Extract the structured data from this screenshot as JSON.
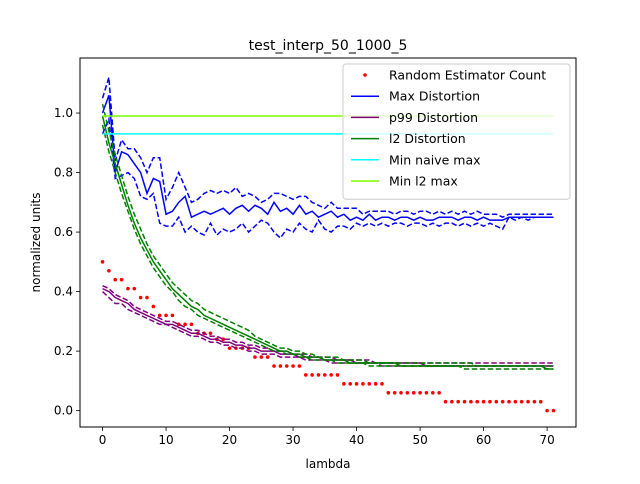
{
  "chart_data": {
    "type": "line",
    "title": "test_interp_50_1000_5",
    "xlabel": "lambda",
    "ylabel": "normalized units",
    "xlim": [
      -3.55,
      74.55
    ],
    "ylim": [
      -0.055,
      1.185
    ],
    "xticks": [
      0,
      10,
      20,
      30,
      40,
      50,
      60,
      70
    ],
    "yticks": [
      0.0,
      0.2,
      0.4,
      0.6,
      0.8,
      1.0
    ],
    "xtick_labels": [
      "0",
      "10",
      "20",
      "30",
      "40",
      "50",
      "60",
      "70"
    ],
    "ytick_labels": [
      "0.0",
      "0.2",
      "0.4",
      "0.6",
      "0.8",
      "1.0"
    ],
    "grid": false,
    "legend": {
      "position": "top-right",
      "entries": [
        {
          "label": "Random Estimator Count",
          "color": "#ff0000",
          "style": "dot"
        },
        {
          "label": "Max Distortion",
          "color": "#0000ff",
          "style": "line"
        },
        {
          "label": "p99 Distortion",
          "color": "#800080",
          "style": "line"
        },
        {
          "label": "l2 Distortion",
          "color": "#008000",
          "style": "line"
        },
        {
          "label": "Min naive max",
          "color": "#00ffff",
          "style": "line"
        },
        {
          "label": "Min l2 max",
          "color": "#7fff00",
          "style": "line"
        }
      ]
    },
    "series": [
      {
        "name": "Random Estimator Count",
        "kind": "scatter",
        "color": "#ff0000",
        "x": [
          0,
          1,
          2,
          3,
          4,
          5,
          6,
          7,
          8,
          9,
          10,
          11,
          12,
          13,
          14,
          15,
          16,
          17,
          18,
          19,
          20,
          21,
          22,
          23,
          24,
          25,
          26,
          27,
          28,
          29,
          30,
          31,
          32,
          33,
          34,
          35,
          36,
          37,
          38,
          39,
          40,
          41,
          42,
          43,
          44,
          45,
          46,
          47,
          48,
          49,
          50,
          51,
          52,
          53,
          54,
          55,
          56,
          57,
          58,
          59,
          60,
          61,
          62,
          63,
          64,
          65,
          66,
          67,
          68,
          69,
          70,
          71
        ],
        "y": [
          0.5,
          0.47,
          0.44,
          0.44,
          0.41,
          0.41,
          0.38,
          0.38,
          0.35,
          0.32,
          0.32,
          0.32,
          0.29,
          0.29,
          0.29,
          0.26,
          0.26,
          0.26,
          0.24,
          0.24,
          0.21,
          0.21,
          0.21,
          0.21,
          0.18,
          0.18,
          0.18,
          0.15,
          0.15,
          0.15,
          0.15,
          0.15,
          0.12,
          0.12,
          0.12,
          0.12,
          0.12,
          0.12,
          0.09,
          0.09,
          0.09,
          0.09,
          0.09,
          0.09,
          0.09,
          0.06,
          0.06,
          0.06,
          0.06,
          0.06,
          0.06,
          0.06,
          0.06,
          0.06,
          0.03,
          0.03,
          0.03,
          0.03,
          0.03,
          0.03,
          0.03,
          0.03,
          0.03,
          0.03,
          0.03,
          0.03,
          0.03,
          0.03,
          0.03,
          0.03,
          0.0,
          0.0
        ]
      },
      {
        "name": "Max Distortion",
        "color": "#0000ff",
        "y": [
          1.0,
          1.06,
          0.8,
          0.87,
          0.86,
          0.83,
          0.8,
          0.73,
          0.78,
          0.77,
          0.66,
          0.67,
          0.7,
          0.72,
          0.65,
          0.66,
          0.67,
          0.66,
          0.67,
          0.68,
          0.66,
          0.68,
          0.69,
          0.67,
          0.69,
          0.68,
          0.66,
          0.7,
          0.67,
          0.68,
          0.66,
          0.69,
          0.66,
          0.67,
          0.65,
          0.66,
          0.67,
          0.65,
          0.66,
          0.64,
          0.65,
          0.64,
          0.66,
          0.64,
          0.65,
          0.65,
          0.64,
          0.65,
          0.65,
          0.64,
          0.65,
          0.64,
          0.64,
          0.65,
          0.65,
          0.65,
          0.64,
          0.65,
          0.65,
          0.64,
          0.65,
          0.64,
          0.64,
          0.64,
          0.65,
          0.65,
          0.65,
          0.65,
          0.65,
          0.65,
          0.65,
          0.65
        ],
        "lower": [
          0.93,
          0.98,
          0.78,
          0.79,
          0.8,
          0.78,
          0.72,
          0.71,
          0.73,
          0.63,
          0.62,
          0.62,
          0.65,
          0.6,
          0.62,
          0.6,
          0.59,
          0.63,
          0.59,
          0.61,
          0.6,
          0.61,
          0.63,
          0.6,
          0.62,
          0.64,
          0.63,
          0.6,
          0.58,
          0.61,
          0.6,
          0.63,
          0.61,
          0.6,
          0.64,
          0.61,
          0.6,
          0.62,
          0.62,
          0.61,
          0.63,
          0.62,
          0.63,
          0.62,
          0.63,
          0.62,
          0.63,
          0.63,
          0.62,
          0.63,
          0.63,
          0.62,
          0.63,
          0.62,
          0.63,
          0.63,
          0.62,
          0.63,
          0.62,
          0.63,
          0.62,
          0.63,
          0.62,
          0.61,
          0.65,
          0.64,
          0.65,
          0.64,
          0.65,
          0.65,
          0.65,
          0.65
        ],
        "upper": [
          1.05,
          1.12,
          0.84,
          0.91,
          0.88,
          0.88,
          0.85,
          0.8,
          0.85,
          0.85,
          0.71,
          0.75,
          0.8,
          0.75,
          0.7,
          0.71,
          0.73,
          0.74,
          0.73,
          0.74,
          0.73,
          0.75,
          0.72,
          0.73,
          0.72,
          0.7,
          0.71,
          0.73,
          0.73,
          0.72,
          0.71,
          0.72,
          0.72,
          0.7,
          0.69,
          0.68,
          0.7,
          0.68,
          0.68,
          0.68,
          0.68,
          0.66,
          0.67,
          0.67,
          0.67,
          0.67,
          0.66,
          0.67,
          0.67,
          0.66,
          0.67,
          0.67,
          0.66,
          0.67,
          0.66,
          0.67,
          0.66,
          0.67,
          0.66,
          0.67,
          0.66,
          0.66,
          0.66,
          0.65,
          0.66,
          0.66,
          0.66,
          0.66,
          0.66,
          0.66,
          0.66,
          0.66
        ]
      },
      {
        "name": "p99 Distortion",
        "color": "#800080",
        "y": [
          0.41,
          0.4,
          0.38,
          0.37,
          0.36,
          0.34,
          0.33,
          0.32,
          0.31,
          0.3,
          0.29,
          0.29,
          0.28,
          0.27,
          0.26,
          0.26,
          0.25,
          0.24,
          0.24,
          0.23,
          0.23,
          0.22,
          0.22,
          0.21,
          0.21,
          0.2,
          0.2,
          0.2,
          0.19,
          0.19,
          0.19,
          0.18,
          0.18,
          0.18,
          0.18,
          0.17,
          0.17,
          0.17,
          0.17,
          0.17,
          0.16,
          0.16,
          0.16,
          0.16,
          0.16,
          0.16,
          0.16,
          0.16,
          0.16,
          0.16,
          0.16,
          0.15,
          0.15,
          0.15,
          0.15,
          0.15,
          0.15,
          0.15,
          0.15,
          0.15,
          0.15,
          0.15,
          0.15,
          0.15,
          0.15,
          0.15,
          0.15,
          0.15,
          0.15,
          0.15,
          0.15,
          0.15
        ],
        "lower": [
          0.4,
          0.38,
          0.36,
          0.36,
          0.34,
          0.33,
          0.32,
          0.31,
          0.3,
          0.29,
          0.29,
          0.28,
          0.27,
          0.26,
          0.25,
          0.25,
          0.24,
          0.23,
          0.23,
          0.22,
          0.22,
          0.21,
          0.21,
          0.2,
          0.2,
          0.19,
          0.19,
          0.19,
          0.18,
          0.18,
          0.18,
          0.18,
          0.17,
          0.17,
          0.17,
          0.17,
          0.16,
          0.16,
          0.16,
          0.16,
          0.16,
          0.16,
          0.16,
          0.16,
          0.15,
          0.15,
          0.15,
          0.15,
          0.15,
          0.15,
          0.15,
          0.15,
          0.15,
          0.15,
          0.15,
          0.15,
          0.15,
          0.15,
          0.15,
          0.15,
          0.15,
          0.15,
          0.15,
          0.15,
          0.15,
          0.15,
          0.15,
          0.15,
          0.15,
          0.15,
          0.15,
          0.15
        ],
        "upper": [
          0.42,
          0.41,
          0.39,
          0.38,
          0.37,
          0.35,
          0.34,
          0.33,
          0.32,
          0.31,
          0.3,
          0.3,
          0.29,
          0.28,
          0.27,
          0.27,
          0.26,
          0.25,
          0.25,
          0.24,
          0.24,
          0.23,
          0.23,
          0.22,
          0.22,
          0.21,
          0.21,
          0.2,
          0.2,
          0.2,
          0.19,
          0.19,
          0.19,
          0.18,
          0.18,
          0.18,
          0.18,
          0.17,
          0.17,
          0.17,
          0.17,
          0.17,
          0.17,
          0.16,
          0.16,
          0.16,
          0.16,
          0.16,
          0.16,
          0.16,
          0.16,
          0.16,
          0.16,
          0.16,
          0.16,
          0.16,
          0.16,
          0.16,
          0.16,
          0.16,
          0.16,
          0.16,
          0.16,
          0.16,
          0.16,
          0.16,
          0.16,
          0.16,
          0.16,
          0.16,
          0.16,
          0.16
        ]
      },
      {
        "name": "l2 Distortion",
        "color": "#008000",
        "y": [
          0.99,
          0.9,
          0.83,
          0.76,
          0.69,
          0.63,
          0.58,
          0.54,
          0.5,
          0.47,
          0.44,
          0.41,
          0.39,
          0.37,
          0.35,
          0.34,
          0.32,
          0.31,
          0.3,
          0.29,
          0.28,
          0.27,
          0.26,
          0.25,
          0.24,
          0.23,
          0.22,
          0.21,
          0.2,
          0.2,
          0.19,
          0.19,
          0.18,
          0.18,
          0.18,
          0.17,
          0.17,
          0.17,
          0.17,
          0.16,
          0.16,
          0.16,
          0.16,
          0.16,
          0.16,
          0.16,
          0.16,
          0.15,
          0.15,
          0.15,
          0.15,
          0.15,
          0.15,
          0.15,
          0.15,
          0.15,
          0.15,
          0.15,
          0.15,
          0.15,
          0.15,
          0.15,
          0.15,
          0.15,
          0.15,
          0.15,
          0.15,
          0.15,
          0.15,
          0.15,
          0.14,
          0.14
        ],
        "lower": [
          0.96,
          0.87,
          0.8,
          0.73,
          0.67,
          0.61,
          0.56,
          0.52,
          0.48,
          0.45,
          0.42,
          0.4,
          0.37,
          0.35,
          0.34,
          0.32,
          0.31,
          0.3,
          0.29,
          0.28,
          0.27,
          0.26,
          0.25,
          0.24,
          0.23,
          0.22,
          0.21,
          0.2,
          0.2,
          0.19,
          0.19,
          0.18,
          0.18,
          0.17,
          0.17,
          0.17,
          0.17,
          0.16,
          0.16,
          0.16,
          0.16,
          0.16,
          0.15,
          0.15,
          0.15,
          0.15,
          0.15,
          0.15,
          0.15,
          0.15,
          0.15,
          0.15,
          0.15,
          0.15,
          0.15,
          0.15,
          0.15,
          0.14,
          0.14,
          0.14,
          0.14,
          0.14,
          0.14,
          0.14,
          0.14,
          0.14,
          0.14,
          0.14,
          0.14,
          0.14,
          0.14,
          0.14
        ],
        "upper": [
          1.03,
          0.94,
          0.86,
          0.79,
          0.72,
          0.66,
          0.61,
          0.56,
          0.52,
          0.49,
          0.46,
          0.43,
          0.41,
          0.39,
          0.37,
          0.36,
          0.34,
          0.33,
          0.32,
          0.31,
          0.3,
          0.29,
          0.28,
          0.27,
          0.25,
          0.24,
          0.23,
          0.22,
          0.21,
          0.21,
          0.2,
          0.2,
          0.19,
          0.19,
          0.18,
          0.18,
          0.18,
          0.18,
          0.17,
          0.17,
          0.17,
          0.17,
          0.16,
          0.16,
          0.16,
          0.16,
          0.16,
          0.16,
          0.16,
          0.16,
          0.16,
          0.16,
          0.16,
          0.16,
          0.16,
          0.16,
          0.16,
          0.16,
          0.16,
          0.15,
          0.15,
          0.15,
          0.15,
          0.15,
          0.15,
          0.15,
          0.15,
          0.15,
          0.15,
          0.15,
          0.15,
          0.15
        ]
      },
      {
        "name": "Min naive max",
        "color": "#00ffff",
        "x_range": [
          0,
          71
        ],
        "constant": 0.93
      },
      {
        "name": "Min l2 max",
        "color": "#7fff00",
        "x_range": [
          0,
          71
        ],
        "constant": 0.99
      }
    ]
  }
}
